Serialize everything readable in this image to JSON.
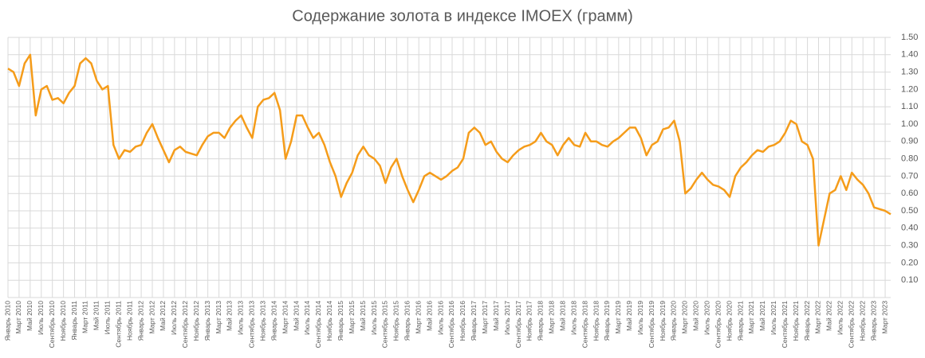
{
  "chart_data": {
    "type": "line",
    "title": "Содержание золота в индексе IMOEX (грамм)",
    "categories": [
      "Январь 2010",
      null,
      "Март 2010",
      null,
      "Май 2010",
      null,
      "Июль 2010",
      null,
      "Сентябрь 2010",
      null,
      "Ноябрь 2010",
      null,
      "Январь 2011",
      null,
      "Март 2011",
      null,
      "Май 2011",
      null,
      "Июль 2011",
      null,
      "Сентябрь 2011",
      null,
      "Ноябрь 2011",
      null,
      "Январь 2012",
      null,
      "Март 2012",
      null,
      "Май 2012",
      null,
      "Июль 2012",
      null,
      "Сентябрь 2012",
      null,
      "Ноябрь 2012",
      null,
      "Январь 2013",
      null,
      "Март 2013",
      null,
      "Май 2013",
      null,
      "Июль 2013",
      null,
      "Сентябрь 2013",
      null,
      "Ноябрь 2013",
      null,
      "Январь 2014",
      null,
      "Март 2014",
      null,
      "Май 2014",
      null,
      "Июль 2014",
      null,
      "Сентябрь 2014",
      null,
      "Ноябрь 2014",
      null,
      "Январь 2015",
      null,
      "Март 2015",
      null,
      "Май 2015",
      null,
      "Июль 2015",
      null,
      "Сентябрь 2015",
      null,
      "Ноябрь 2015",
      null,
      "Январь 2016",
      null,
      "Март 2016",
      null,
      "Май 2016",
      null,
      "Июль 2016",
      null,
      "Сентябрь 2016",
      null,
      "Ноябрь 2016",
      null,
      "Январь 2017",
      null,
      "Март 2017",
      null,
      "Май 2017",
      null,
      "Июль 2017",
      null,
      "Сентябрь 2017",
      null,
      "Ноябрь 2017",
      null,
      "Январь 2018",
      null,
      "Март 2018",
      null,
      "Май 2018",
      null,
      "Июль 2018",
      null,
      "Сентябрь 2018",
      null,
      "Ноябрь 2018",
      null,
      "Январь 2019",
      null,
      "Март 2019",
      null,
      "Май 2019",
      null,
      "Июль 2019",
      null,
      "Сентябрь 2019",
      null,
      "Ноябрь 2019",
      null,
      "Январь 2020",
      null,
      "Март 2020",
      null,
      "Май 2020",
      null,
      "Июль 2020",
      null,
      "Сентябрь 2020",
      null,
      "Ноябрь 2020",
      null,
      "Январь 2021",
      null,
      "Март 2021",
      null,
      "Май 2021",
      null,
      "Июль 2021",
      null,
      "Сентябрь 2021",
      null,
      "Ноябрь 2021",
      null,
      "Январь 2022",
      null,
      "Март 2022",
      null,
      "Май 2022",
      null,
      "Июль 2022",
      null,
      "Сентябрь 2022",
      null,
      "Ноябрь 2022",
      null,
      "Январь 2023",
      null,
      "Март 2023",
      null
    ],
    "values": [
      1.32,
      1.3,
      1.22,
      1.35,
      1.4,
      1.05,
      1.2,
      1.22,
      1.14,
      1.15,
      1.12,
      1.18,
      1.22,
      1.35,
      1.38,
      1.35,
      1.25,
      1.2,
      1.22,
      0.88,
      0.8,
      0.85,
      0.84,
      0.87,
      0.88,
      0.95,
      1.0,
      0.92,
      0.85,
      0.78,
      0.85,
      0.87,
      0.84,
      0.83,
      0.82,
      0.88,
      0.93,
      0.95,
      0.95,
      0.92,
      0.98,
      1.02,
      1.05,
      0.98,
      0.92,
      1.1,
      1.14,
      1.15,
      1.18,
      1.08,
      0.8,
      0.9,
      1.05,
      1.05,
      0.98,
      0.92,
      0.95,
      0.88,
      0.78,
      0.7,
      0.58,
      0.66,
      0.72,
      0.82,
      0.87,
      0.82,
      0.8,
      0.76,
      0.66,
      0.75,
      0.8,
      0.7,
      0.62,
      0.55,
      0.62,
      0.7,
      0.72,
      0.7,
      0.68,
      0.7,
      0.73,
      0.75,
      0.8,
      0.95,
      0.98,
      0.95,
      0.88,
      0.9,
      0.84,
      0.8,
      0.78,
      0.82,
      0.85,
      0.87,
      0.88,
      0.9,
      0.95,
      0.9,
      0.88,
      0.82,
      0.88,
      0.92,
      0.88,
      0.87,
      0.95,
      0.9,
      0.9,
      0.88,
      0.87,
      0.9,
      0.92,
      0.95,
      0.98,
      0.98,
      0.92,
      0.82,
      0.88,
      0.9,
      0.97,
      0.98,
      1.02,
      0.9,
      0.6,
      0.63,
      0.68,
      0.72,
      0.68,
      0.65,
      0.64,
      0.62,
      0.58,
      0.7,
      0.75,
      0.78,
      0.82,
      0.85,
      0.84,
      0.87,
      0.88,
      0.9,
      0.95,
      1.02,
      1.0,
      0.9,
      0.88,
      0.8,
      0.3,
      0.45,
      0.6,
      0.62,
      0.7,
      0.62,
      0.72,
      0.68,
      0.65,
      0.6,
      0.52,
      0.51,
      0.5,
      0.48
    ],
    "color": "#f59c1a",
    "ylim": [
      0,
      1.5
    ],
    "yticks": [
      0,
      {
        "value": 0.1,
        "label": "0.10"
      },
      {
        "value": 0.2,
        "label": "0.20"
      },
      {
        "value": 0.3,
        "label": "0.30"
      },
      {
        "value": 0.4,
        "label": "0.40"
      },
      {
        "value": 0.5,
        "label": "0.50"
      },
      {
        "value": 0.6,
        "label": "0.60"
      },
      {
        "value": 0.7,
        "label": "0.70"
      },
      {
        "value": 0.8,
        "label": "0.80"
      },
      {
        "value": 0.9,
        "label": "0.90"
      },
      {
        "value": 1.0,
        "label": "1.00"
      },
      {
        "value": 1.1,
        "label": "1.10"
      },
      {
        "value": 1.2,
        "label": "1.20"
      },
      {
        "value": 1.3,
        "label": "1.30"
      },
      {
        "value": 1.4,
        "label": "1.40"
      },
      {
        "value": 1.5,
        "label": "1.50"
      }
    ],
    "grid": true
  }
}
